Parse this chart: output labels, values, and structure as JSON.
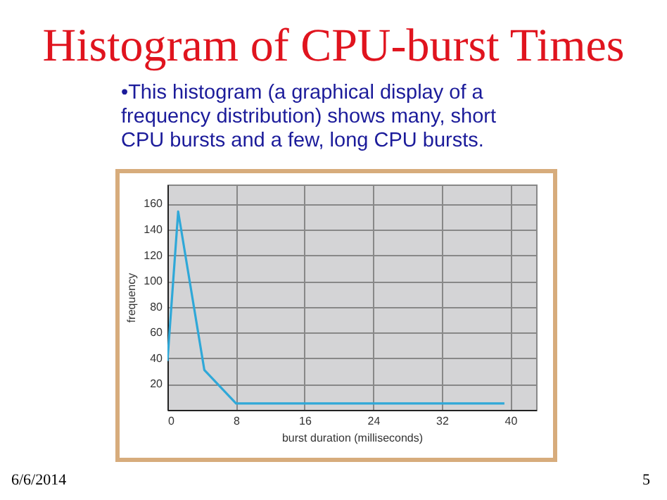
{
  "chart_data": {
    "type": "line",
    "title": "Histogram of CPU-burst Times",
    "subtitle": "•This histogram (a graphical display of a frequency distribution) shows many, short CPU bursts and a few, long CPU bursts.",
    "xlabel": "burst duration (milliseconds)",
    "ylabel": "frequency",
    "x": [
      0,
      1.25,
      4.3,
      8,
      39.3
    ],
    "series": [
      {
        "color": "#2fa8d8",
        "values": [
          38,
          154,
          31,
          5,
          5
        ]
      }
    ],
    "xlim": [
      0,
      43
    ],
    "xticks": [
      0,
      8,
      16,
      24,
      32,
      40
    ],
    "ylim": [
      0,
      175
    ],
    "yticks": [
      20,
      40,
      60,
      80,
      100,
      120,
      140,
      160
    ],
    "grid": true,
    "marker": "none",
    "line_style": "solid",
    "annotations": [
      "6/6/2014",
      "5"
    ]
  }
}
